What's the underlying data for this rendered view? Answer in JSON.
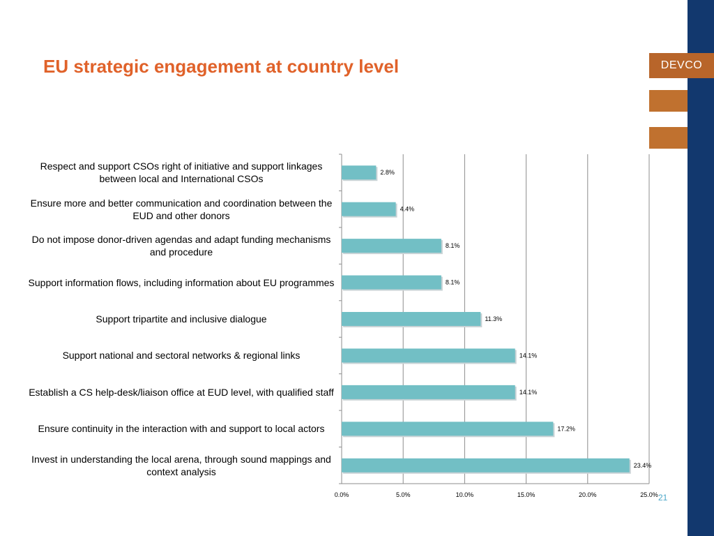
{
  "slide": {
    "title": "EU strategic engagement at country level",
    "brand": "DEVCO",
    "page_number": "21"
  },
  "colors": {
    "title": "#e0622a",
    "bar": "#72bfc5",
    "sidebar": "#12386e",
    "brand": "#b8652a",
    "page_number": "#4aa6c8"
  },
  "chart_data": {
    "type": "bar",
    "orientation": "horizontal",
    "categories": [
      "Respect and support CSOs right of initiative and support linkages between local and International CSOs",
      "Ensure more and better communication and coordination between the EUD and other donors",
      "Do not impose donor-driven agendas and adapt funding mechanisms and procedure",
      "Support information flows, including information about EU programmes",
      "Support tripartite and inclusive dialogue",
      "Support national and sectoral networks & regional links",
      "Establish a CS help-desk/liaison office at EUD level, with qualified staff",
      "Ensure continuity in the interaction with and support to local actors",
      "Invest in understanding the local arena, through sound mappings and context analysis"
    ],
    "values": [
      2.8,
      4.4,
      8.1,
      8.1,
      11.3,
      14.1,
      14.1,
      17.2,
      23.4
    ],
    "value_labels": [
      "2.8%",
      "4.4%",
      "8.1%",
      "8.1%",
      "11.3%",
      "14.1%",
      "14.1%",
      "17.2%",
      "23.4%"
    ],
    "xlim": [
      0,
      25
    ],
    "xticks": [
      0,
      5,
      10,
      15,
      20,
      25
    ],
    "xtick_labels": [
      "0.0%",
      "5.0%",
      "10.0%",
      "15.0%",
      "20.0%",
      "25.0%"
    ],
    "grid": true,
    "legend": "none"
  }
}
